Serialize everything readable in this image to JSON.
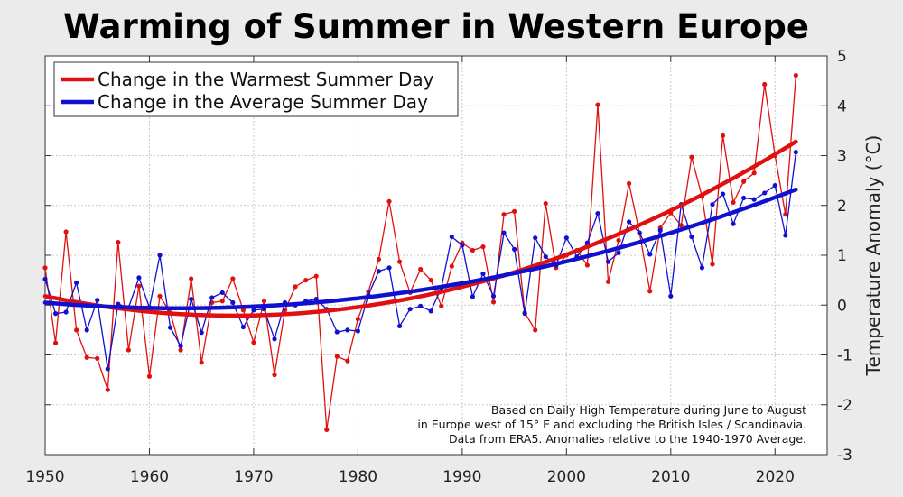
{
  "chart_data": {
    "type": "line",
    "title": "Warming of Summer in Western Europe",
    "xlabel": "",
    "ylabel": "Temperature Anomaly (°C)",
    "xlim": [
      1950,
      2025
    ],
    "ylim": [
      -3,
      5
    ],
    "x_ticks": [
      1950,
      1960,
      1970,
      1980,
      1990,
      2000,
      2010,
      2020
    ],
    "y_ticks": [
      -3,
      -2,
      -1,
      0,
      1,
      2,
      3,
      4,
      5
    ],
    "y_axis_side": "right",
    "grid": true,
    "legend_position": "top-left",
    "legend": [
      "Change in the Warmest Summer Day",
      "Change in the Average Summer Day"
    ],
    "annotation": [
      "Based on Daily High Temperature during June to August",
      "in Europe west of 15° E and excluding the British Isles / Scandinavia.",
      "Data from ERA5.  Anomalies relative to the 1940-1970 Average."
    ],
    "x": [
      1950,
      1951,
      1952,
      1953,
      1954,
      1955,
      1956,
      1957,
      1958,
      1959,
      1960,
      1961,
      1962,
      1963,
      1964,
      1965,
      1966,
      1967,
      1968,
      1969,
      1970,
      1971,
      1972,
      1973,
      1974,
      1975,
      1976,
      1977,
      1978,
      1979,
      1980,
      1981,
      1982,
      1983,
      1984,
      1985,
      1986,
      1987,
      1988,
      1989,
      1990,
      1991,
      1992,
      1993,
      1994,
      1995,
      1996,
      1997,
      1998,
      1999,
      2000,
      2001,
      2002,
      2003,
      2004,
      2005,
      2006,
      2007,
      2008,
      2009,
      2010,
      2011,
      2012,
      2013,
      2014,
      2015,
      2016,
      2017,
      2018,
      2019,
      2020,
      2021,
      2022
    ],
    "series": [
      {
        "name": "Change in the Warmest Summer Day",
        "color": "#e01010",
        "values": [
          0.75,
          -0.76,
          1.47,
          -0.5,
          -1.05,
          -1.07,
          -1.7,
          1.26,
          -0.9,
          0.38,
          -1.43,
          0.18,
          -0.15,
          -0.9,
          0.53,
          -1.15,
          0.05,
          0.08,
          0.53,
          -0.1,
          -0.75,
          0.08,
          -1.4,
          -0.1,
          0.37,
          0.5,
          0.58,
          -2.5,
          -1.03,
          -1.12,
          -0.28,
          0.27,
          0.92,
          2.08,
          0.87,
          0.25,
          0.72,
          0.5,
          -0.02,
          0.78,
          1.25,
          1.1,
          1.17,
          0.06,
          1.82,
          1.88,
          -0.15,
          -0.5,
          2.04,
          0.75,
          1.0,
          1.1,
          0.8,
          4.02,
          0.47,
          1.3,
          2.44,
          1.45,
          0.28,
          1.55,
          1.85,
          1.6,
          2.97,
          2.18,
          0.82,
          3.4,
          2.06,
          2.48,
          2.65,
          4.43,
          3.0,
          1.82,
          4.61
        ],
        "trend_start": 0.18,
        "trend_mid": -0.2,
        "trend_end": 3.28
      },
      {
        "name": "Change in the Average Summer Day",
        "color": "#1010d0",
        "values": [
          0.52,
          -0.17,
          -0.14,
          0.45,
          -0.5,
          0.1,
          -1.28,
          0.02,
          -0.05,
          0.55,
          -0.05,
          1.0,
          -0.45,
          -0.82,
          0.12,
          -0.55,
          0.15,
          0.25,
          0.05,
          -0.44,
          -0.1,
          -0.08,
          -0.68,
          0.05,
          0.0,
          0.08,
          0.12,
          -0.08,
          -0.54,
          -0.5,
          -0.52,
          0.2,
          0.68,
          0.75,
          -0.42,
          -0.08,
          -0.02,
          -0.12,
          0.35,
          1.37,
          1.2,
          0.17,
          0.63,
          0.18,
          1.45,
          1.12,
          -0.17,
          1.35,
          0.97,
          0.8,
          1.35,
          0.97,
          1.25,
          1.84,
          0.87,
          1.05,
          1.67,
          1.45,
          1.02,
          1.5,
          0.18,
          2.02,
          1.37,
          0.75,
          2.02,
          2.23,
          1.63,
          2.15,
          2.12,
          2.25,
          2.4,
          1.4,
          3.07
        ],
        "trend_start": 0.05,
        "trend_mid": -0.06,
        "trend_end": 2.32
      }
    ]
  }
}
